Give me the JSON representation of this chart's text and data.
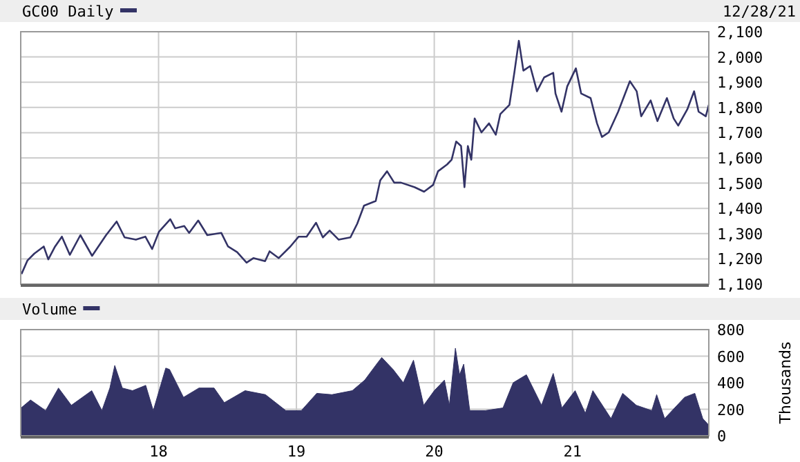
{
  "chart_data": [
    {
      "type": "line",
      "legend": "top left",
      "annotations": [
        "12/28/21"
      ],
      "grid": true,
      "tick_labels": "y",
      "xlim": [
        "2017-01-01",
        "2021-12-28"
      ],
      "xticks": [
        {
          "value": "2018-01-01",
          "label": null
        },
        {
          "value": "2019-01-01",
          "label": null
        },
        {
          "value": "2020-01-01",
          "label": null
        },
        {
          "value": "2021-01-01",
          "label": null
        }
      ],
      "ylim": [
        1100,
        2100
      ],
      "yticks": [
        {
          "value": 1100,
          "label": "1,100"
        },
        {
          "value": 1200,
          "label": "1,200"
        },
        {
          "value": 1300,
          "label": "1,300"
        },
        {
          "value": 1400,
          "label": "1,400"
        },
        {
          "value": 1500,
          "label": "1,500"
        },
        {
          "value": 1600,
          "label": "1,600"
        },
        {
          "value": 1700,
          "label": "1,700"
        },
        {
          "value": 1800,
          "label": "1,800"
        },
        {
          "value": 1900,
          "label": "1,900"
        },
        {
          "value": 2000,
          "label": "2,000"
        },
        {
          "value": 2100,
          "label": "2,100"
        }
      ],
      "x": [
        "2017-01-03",
        "2017-01-19",
        "2017-02-06",
        "2017-03-03",
        "2017-03-15",
        "2017-04-02",
        "2017-04-20",
        "2017-05-11",
        "2017-06-08",
        "2017-07-09",
        "2017-08-15",
        "2017-09-12",
        "2017-10-03",
        "2017-11-02",
        "2017-11-27",
        "2017-12-15",
        "2018-01-02",
        "2018-02-01",
        "2018-02-14",
        "2018-03-10",
        "2018-03-23",
        "2018-04-16",
        "2018-05-10",
        "2018-06-16",
        "2018-07-04",
        "2018-07-28",
        "2018-08-22",
        "2018-09-09",
        "2018-10-10",
        "2018-10-22",
        "2018-11-15",
        "2018-12-16",
        "2019-01-07",
        "2019-01-28",
        "2019-02-22",
        "2019-03-12",
        "2019-03-30",
        "2019-04-23",
        "2019-05-24",
        "2019-06-11",
        "2019-06-29",
        "2019-07-30",
        "2019-08-11",
        "2019-08-29",
        "2019-09-17",
        "2019-10-05",
        "2019-11-10",
        "2019-12-05",
        "2019-12-29",
        "2020-01-11",
        "2020-02-04",
        "2020-02-16",
        "2020-02-28",
        "2020-03-12",
        "2020-03-21",
        "2020-03-30",
        "2020-04-08",
        "2020-04-17",
        "2020-05-05",
        "2020-05-25",
        "2020-06-12",
        "2020-06-24",
        "2020-07-18",
        "2020-07-31",
        "2020-08-12",
        "2020-08-24",
        "2020-09-11",
        "2020-09-29",
        "2020-10-18",
        "2020-11-11",
        "2020-11-17",
        "2020-12-03",
        "2020-12-18",
        "2021-01-10",
        "2021-01-24",
        "2021-02-18",
        "2021-03-07",
        "2021-03-20",
        "2021-04-07",
        "2021-05-02",
        "2021-06-02",
        "2021-06-20",
        "2021-07-02",
        "2021-07-27",
        "2021-08-14",
        "2021-09-08",
        "2021-09-26",
        "2021-10-08",
        "2021-11-01",
        "2021-11-19",
        "2021-12-01",
        "2021-12-20",
        "2021-12-28"
      ],
      "series": [
        {
          "name": "GC00 Daily",
          "color": "#333366",
          "values": [
            1140,
            1194,
            1221,
            1249,
            1198,
            1249,
            1288,
            1216,
            1294,
            1212,
            1294,
            1348,
            1285,
            1276,
            1288,
            1239,
            1307,
            1357,
            1321,
            1330,
            1303,
            1352,
            1294,
            1303,
            1249,
            1227,
            1185,
            1203,
            1191,
            1230,
            1203,
            1249,
            1288,
            1288,
            1343,
            1285,
            1312,
            1276,
            1285,
            1339,
            1411,
            1429,
            1511,
            1547,
            1502,
            1502,
            1484,
            1466,
            1493,
            1547,
            1574,
            1593,
            1665,
            1647,
            1484,
            1647,
            1593,
            1756,
            1701,
            1737,
            1692,
            1774,
            1810,
            1937,
            2064,
            1946,
            1964,
            1864,
            1919,
            1937,
            1855,
            1783,
            1883,
            1955,
            1855,
            1837,
            1737,
            1683,
            1701,
            1783,
            1904,
            1864,
            1765,
            1828,
            1746,
            1837,
            1756,
            1728,
            1792,
            1864,
            1783,
            1765,
            1810
          ]
        }
      ]
    },
    {
      "type": "area",
      "legend": "top left",
      "ylabel": "Thousands",
      "grid": true,
      "xlim": [
        "2017-01-01",
        "2021-12-28"
      ],
      "xticks": [
        {
          "value": "2018-01-01",
          "label": "18"
        },
        {
          "value": "2019-01-01",
          "label": "19"
        },
        {
          "value": "2020-01-01",
          "label": "20"
        },
        {
          "value": "2021-01-01",
          "label": "21"
        }
      ],
      "ylim": [
        0,
        800
      ],
      "yticks": [
        0,
        200,
        400,
        600,
        800
      ],
      "x": [
        "2017-01-02",
        "2017-01-27",
        "2017-03-08",
        "2017-04-11",
        "2017-05-15",
        "2017-07-08",
        "2017-08-04",
        "2017-08-25",
        "2017-09-07",
        "2017-09-27",
        "2017-10-24",
        "2017-11-28",
        "2017-12-18",
        "2018-01-20",
        "2018-01-30",
        "2018-03-08",
        "2018-04-18",
        "2018-05-28",
        "2018-06-24",
        "2018-08-18",
        "2018-10-11",
        "2018-12-04",
        "2019-01-14",
        "2019-02-24",
        "2019-04-05",
        "2019-05-29",
        "2019-07-01",
        "2019-08-04",
        "2019-08-15",
        "2019-09-14",
        "2019-10-11",
        "2019-11-07",
        "2019-12-04",
        "2020-01-01",
        "2020-01-28",
        "2020-02-10",
        "2020-02-26",
        "2020-03-08",
        "2020-03-19",
        "2020-04-04",
        "2020-05-15",
        "2020-07-01",
        "2020-07-28",
        "2020-09-01",
        "2020-10-11",
        "2020-11-11",
        "2020-12-04",
        "2021-01-08",
        "2021-02-04",
        "2021-02-24",
        "2021-04-13",
        "2021-05-14",
        "2021-06-19",
        "2021-07-30",
        "2021-08-12",
        "2021-09-02",
        "2021-10-25",
        "2021-11-21",
        "2021-12-12",
        "2021-12-28"
      ],
      "series": [
        {
          "name": "Volume",
          "color": "#333366",
          "values": [
            210,
            270,
            190,
            360,
            230,
            340,
            190,
            360,
            530,
            360,
            340,
            380,
            190,
            510,
            500,
            290,
            360,
            360,
            250,
            340,
            310,
            190,
            190,
            320,
            310,
            340,
            420,
            550,
            590,
            500,
            400,
            570,
            230,
            340,
            420,
            230,
            660,
            460,
            540,
            190,
            190,
            210,
            400,
            460,
            230,
            470,
            210,
            340,
            170,
            340,
            130,
            320,
            230,
            190,
            310,
            130,
            290,
            320,
            130,
            80
          ]
        }
      ]
    }
  ]
}
